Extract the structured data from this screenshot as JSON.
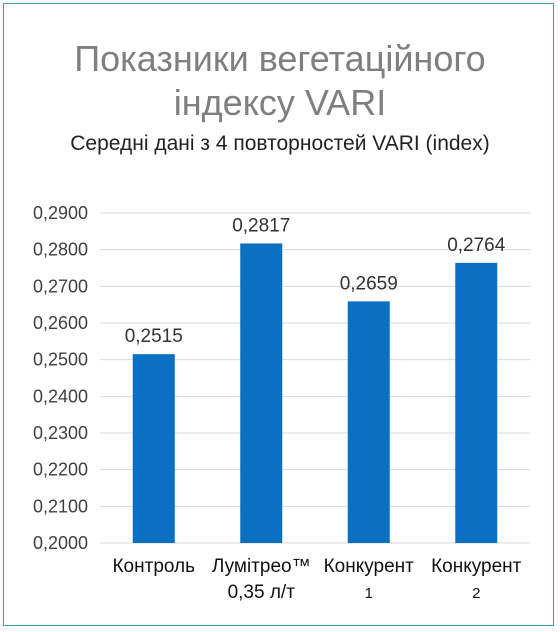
{
  "chart_data": {
    "type": "bar",
    "title_lines": [
      "Показники вегетаційного",
      "індексу VARI"
    ],
    "subtitle": "Середні дані з 4 повторностей VARI (index)",
    "categories": [
      [
        "Контроль"
      ],
      [
        "Лумітрео™",
        "0,35 л/т"
      ],
      [
        "Конкурент",
        "1"
      ],
      [
        "Конкурент",
        "2"
      ]
    ],
    "values": [
      0.2515,
      0.2817,
      0.2659,
      0.2764
    ],
    "data_labels": [
      "0,2515",
      "0,2817",
      "0,2659",
      "0,2764"
    ],
    "ylim": [
      0.2,
      0.29
    ],
    "yticks": [
      "0,2000",
      "0,2100",
      "0,2200",
      "0,2300",
      "0,2400",
      "0,2500",
      "0,2600",
      "0,2700",
      "0,2800",
      "0,2900"
    ],
    "grid": true,
    "bar_color": "#0b70c1",
    "grid_color": "#d9d9d9",
    "xlabel": "",
    "ylabel": ""
  }
}
